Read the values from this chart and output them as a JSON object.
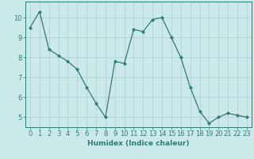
{
  "x": [
    0,
    1,
    2,
    3,
    4,
    5,
    6,
    7,
    8,
    9,
    10,
    11,
    12,
    13,
    14,
    15,
    16,
    17,
    18,
    19,
    20,
    21,
    22,
    23
  ],
  "y": [
    9.5,
    10.3,
    8.4,
    8.1,
    7.8,
    7.4,
    6.5,
    5.7,
    5.0,
    7.8,
    7.7,
    9.4,
    9.3,
    9.9,
    10.0,
    9.0,
    8.0,
    6.5,
    5.3,
    4.7,
    5.0,
    5.2,
    5.1,
    5.0
  ],
  "line_color": "#2e7d6e",
  "marker": "D",
  "marker_size": 2.0,
  "bg_color": "#cce9ea",
  "grid_color": "#aacfcf",
  "tick_color": "#2e7d6e",
  "xlabel": "Humidex (Indice chaleur)",
  "ylim": [
    4.5,
    10.8
  ],
  "yticks": [
    5,
    6,
    7,
    8,
    9,
    10
  ],
  "xticks": [
    0,
    1,
    2,
    3,
    4,
    5,
    6,
    7,
    8,
    9,
    10,
    11,
    12,
    13,
    14,
    15,
    16,
    17,
    18,
    19,
    20,
    21,
    22,
    23
  ],
  "xlabel_fontsize": 6.5,
  "tick_fontsize": 6.0,
  "line_width": 0.9
}
